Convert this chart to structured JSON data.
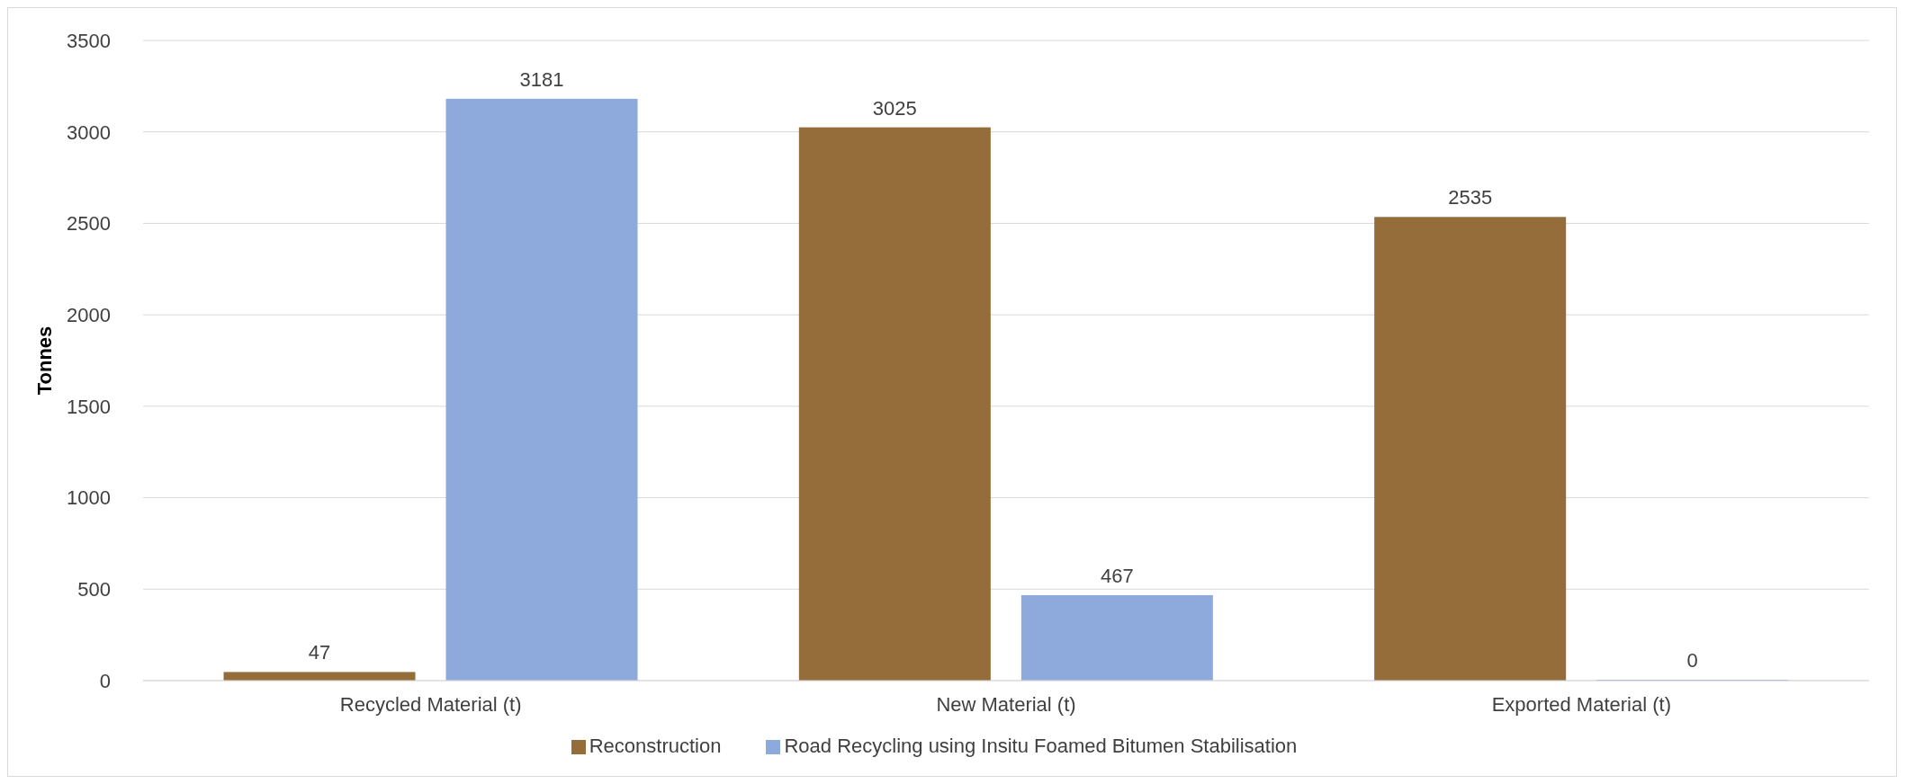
{
  "chart_data": {
    "type": "bar",
    "ylabel": "Tonnes",
    "categories": [
      "Recycled Material (t)",
      "New Material (t)",
      "Exported Material (t)"
    ],
    "series": [
      {
        "name": "Reconstruction",
        "color": "#946d3a",
        "values": [
          47,
          3025,
          2535
        ]
      },
      {
        "name": "Road Recycling using Insitu Foamed Bitumen Stabilisation",
        "color": "#8eaadc",
        "values": [
          3181,
          467,
          0
        ]
      }
    ],
    "ylim": [
      0,
      3500
    ],
    "yticks": [
      0,
      500,
      1000,
      1500,
      2000,
      2500,
      3000,
      3500
    ],
    "grid": "y",
    "legend": "bottom",
    "data_labels": true
  }
}
